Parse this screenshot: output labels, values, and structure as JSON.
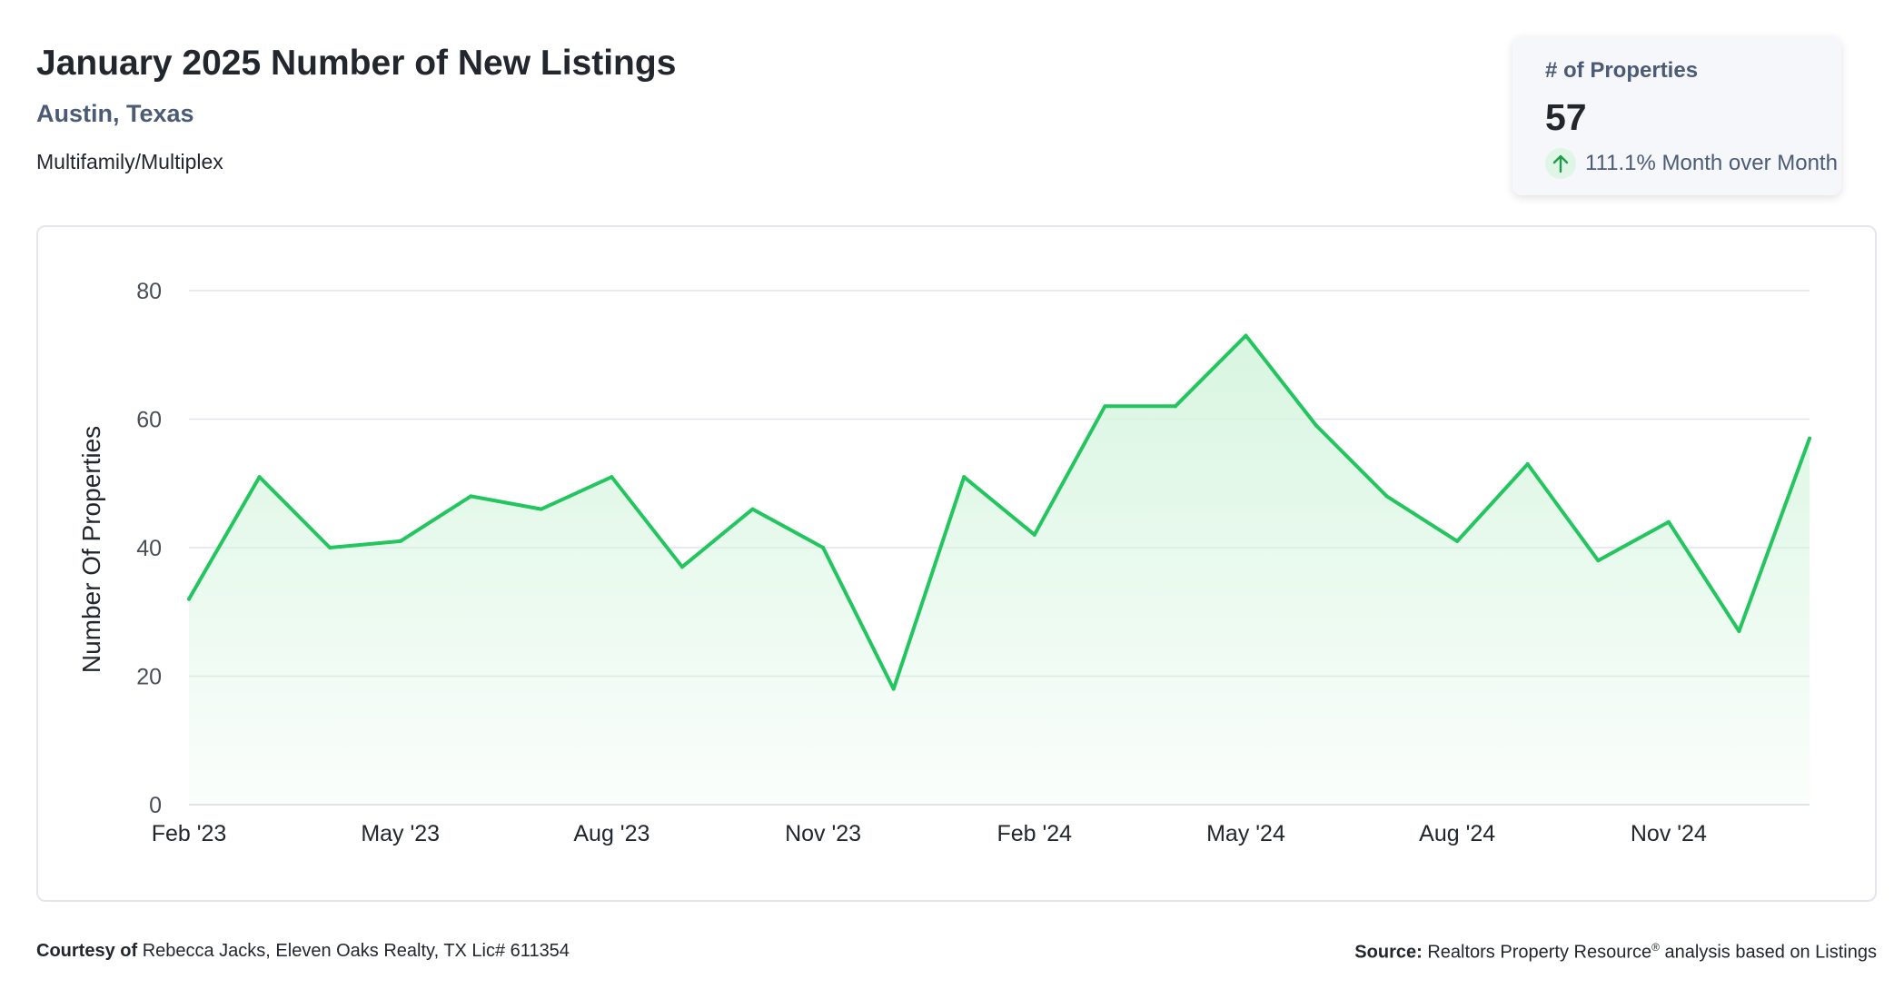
{
  "header": {
    "title": "January 2025 Number of New Listings",
    "location": "Austin, Texas",
    "property_type": "Multifamily/Multiplex"
  },
  "kpi": {
    "label": "# of Properties",
    "value": "57",
    "change": "111.1% Month over Month",
    "direction_icon": "arrow-up-icon"
  },
  "colors": {
    "line": "#22c55e",
    "area_top": "#d6f5df",
    "grid": "#dfe3e8"
  },
  "chart_data": {
    "type": "area",
    "x": [
      "2023-02",
      "2023-03",
      "2023-04",
      "2023-05",
      "2023-06",
      "2023-07",
      "2023-08",
      "2023-09",
      "2023-10",
      "2023-11",
      "2023-12",
      "2024-01",
      "2024-02",
      "2024-03",
      "2024-04",
      "2024-05",
      "2024-06",
      "2024-07",
      "2024-08",
      "2024-09",
      "2024-10",
      "2024-11",
      "2024-12",
      "2025-01"
    ],
    "values": [
      32,
      51,
      40,
      41,
      48,
      46,
      51,
      37,
      46,
      40,
      18,
      51,
      42,
      62,
      62,
      73,
      59,
      48,
      41,
      53,
      38,
      44,
      27,
      57
    ],
    "xtick_labels": [
      "Feb '23",
      "May '23",
      "Aug '23",
      "Nov '23",
      "Feb '24",
      "May '24",
      "Aug '24",
      "Nov '24"
    ],
    "xtick_index": [
      0,
      3,
      6,
      9,
      12,
      15,
      18,
      21
    ],
    "yticks": [
      0,
      20,
      40,
      60,
      80
    ],
    "ylim": [
      0,
      80
    ],
    "ylabel": "Number Of Properties",
    "xlabel": "",
    "grid": true,
    "legend": "none"
  },
  "footer": {
    "courtesy_label": "Courtesy of",
    "courtesy_text": "Rebecca Jacks, Eleven Oaks Realty, TX Lic# 611354",
    "source_label": "Source:",
    "source_text_a": "Realtors Property Resource",
    "source_reg": "®",
    "source_text_b": "analysis based on Listings"
  }
}
